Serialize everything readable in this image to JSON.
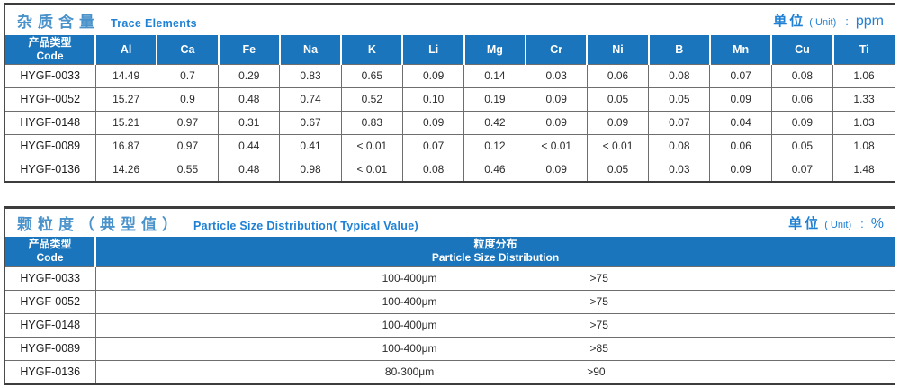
{
  "colors": {
    "header_bg": "#1a75bc",
    "title_zh_blue": "#4a92ca",
    "accent_blue": "#1f80d4",
    "outer_border": "#3c3c3c",
    "cell_border": "#6e6e6e"
  },
  "trace_table": {
    "title_zh": "杂质含量",
    "title_en": "Trace Elements",
    "unit_label": "单位",
    "unit_paren": "( Unit)",
    "unit_colon": ":",
    "unit_value": "ppm",
    "code_header_zh": "产品类型",
    "code_header_en": "Code",
    "element_columns": [
      "Al",
      "Ca",
      "Fe",
      "Na",
      "K",
      "Li",
      "Mg",
      "Cr",
      "Ni",
      "B",
      "Mn",
      "Cu",
      "Ti"
    ],
    "rows": [
      {
        "code": "HYGF-0033",
        "values": [
          "14.49",
          "0.7",
          "0.29",
          "0.83",
          "0.65",
          "0.09",
          "0.14",
          "0.03",
          "0.06",
          "0.08",
          "0.07",
          "0.08",
          "1.06"
        ]
      },
      {
        "code": "HYGF-0052",
        "values": [
          "15.27",
          "0.9",
          "0.48",
          "0.74",
          "0.52",
          "0.10",
          "0.19",
          "0.09",
          "0.05",
          "0.05",
          "0.09",
          "0.06",
          "1.33"
        ]
      },
      {
        "code": "HYGF-0148",
        "values": [
          "15.21",
          "0.97",
          "0.31",
          "0.67",
          "0.83",
          "0.09",
          "0.42",
          "0.09",
          "0.09",
          "0.07",
          "0.04",
          "0.09",
          "1.03"
        ]
      },
      {
        "code": "HYGF-0089",
        "values": [
          "16.87",
          "0.97",
          "0.44",
          "0.41",
          "< 0.01",
          "0.07",
          "0.12",
          "< 0.01",
          "< 0.01",
          "0.08",
          "0.06",
          "0.05",
          "1.08"
        ]
      },
      {
        "code": "HYGF-0136",
        "values": [
          "14.26",
          "0.55",
          "0.48",
          "0.98",
          "< 0.01",
          "0.08",
          "0.46",
          "0.09",
          "0.05",
          "0.03",
          "0.09",
          "0.07",
          "1.48"
        ]
      }
    ]
  },
  "particle_table": {
    "title_zh": "颗粒度（典型值）",
    "title_en": "Particle Size Distribution( Typical Value)",
    "unit_label": "单位",
    "unit_paren": "( Unit)",
    "unit_colon": ":",
    "unit_value": "%",
    "code_header_zh": "产品类型",
    "code_header_en": "Code",
    "dist_header_zh": "粒度分布",
    "dist_header_en": "Particle Size  Distribution",
    "rows": [
      {
        "code": "HYGF-0033",
        "range": "100-400μm",
        "value": ">75"
      },
      {
        "code": "HYGF-0052",
        "range": "100-400μm",
        "value": ">75"
      },
      {
        "code": "HYGF-0148",
        "range": "100-400μm",
        "value": ">75"
      },
      {
        "code": "HYGF-0089",
        "range": "100-400μm",
        "value": ">85"
      },
      {
        "code": "HYGF-0136",
        "range": "80-300μm",
        "value": ">90"
      }
    ]
  }
}
